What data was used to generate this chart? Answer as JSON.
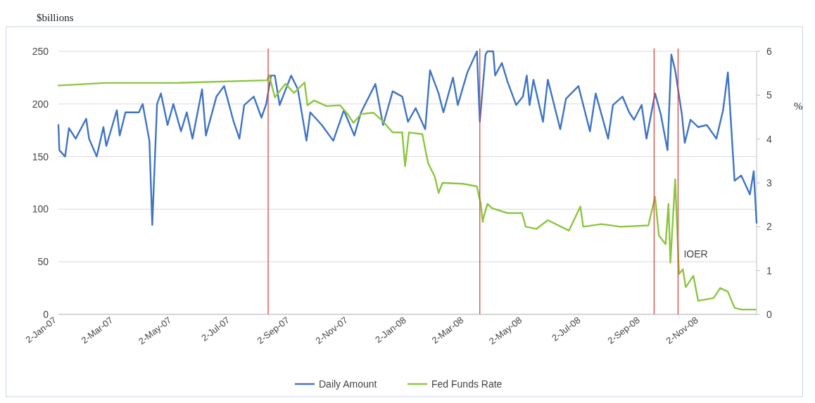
{
  "chart_data": {
    "type": "line",
    "ylabel": "$billions",
    "y2label": "%",
    "xlim": [
      "2007-01-02",
      "2008-12-31"
    ],
    "xticks": [
      {
        "value": "2007-01-02",
        "label": "2-Jan-07"
      },
      {
        "value": "2007-03-02",
        "label": "2-Mar-07"
      },
      {
        "value": "2007-05-02",
        "label": "2-May-07"
      },
      {
        "value": "2007-07-02",
        "label": "2-Jul-07"
      },
      {
        "value": "2007-09-02",
        "label": "2-Sep-07"
      },
      {
        "value": "2007-11-02",
        "label": "2-Nov-07"
      },
      {
        "value": "2008-01-02",
        "label": "2-Jan-08"
      },
      {
        "value": "2008-03-02",
        "label": "2-Mar-08"
      },
      {
        "value": "2008-05-02",
        "label": "2-May-08"
      },
      {
        "value": "2008-07-02",
        "label": "2-Jul-08"
      },
      {
        "value": "2008-09-02",
        "label": "2-Sep-08"
      },
      {
        "value": "2008-11-02",
        "label": "2-Nov-08"
      }
    ],
    "ylim": [
      0,
      250
    ],
    "yticks": [
      0,
      50,
      100,
      150,
      200,
      250
    ],
    "y2lim": [
      0,
      6
    ],
    "y2ticks": [
      0,
      1,
      2,
      3,
      4,
      5,
      6
    ],
    "grid": "y",
    "legend": "bottom",
    "ref_lines": [
      {
        "axis": "x",
        "value": "2007-08-09",
        "color": "#d9453f"
      },
      {
        "axis": "x",
        "value": "2008-03-17",
        "color": "#d9453f"
      },
      {
        "axis": "x",
        "value": "2008-09-15",
        "color": "#d9453f"
      },
      {
        "axis": "x",
        "value": "2008-10-10",
        "color": "#d9453f",
        "label": "IOER"
      }
    ],
    "series": [
      {
        "name": "Daily Amount",
        "color": "#3f74c4",
        "x": [
          "2007-01-02",
          "2007-01-03",
          "2007-01-09",
          "2007-01-13",
          "2007-01-20",
          "2007-01-31",
          "2007-02-03",
          "2007-02-11",
          "2007-02-18",
          "2007-02-21",
          "2007-03-04",
          "2007-03-07",
          "2007-03-13",
          "2007-03-27",
          "2007-03-31",
          "2007-04-07",
          "2007-04-10",
          "2007-04-15",
          "2007-04-19",
          "2007-04-26",
          "2007-05-02",
          "2007-05-10",
          "2007-05-16",
          "2007-05-22",
          "2007-06-01",
          "2007-06-05",
          "2007-06-16",
          "2007-06-24",
          "2007-07-04",
          "2007-07-10",
          "2007-07-15",
          "2007-07-25",
          "2007-08-02",
          "2007-08-07",
          "2007-08-12",
          "2007-08-16",
          "2007-08-21",
          "2007-09-02",
          "2007-09-09",
          "2007-09-18",
          "2007-09-22",
          "2007-10-04",
          "2007-10-16",
          "2007-10-27",
          "2007-11-07",
          "2007-11-14",
          "2007-11-29",
          "2007-12-07",
          "2007-12-17",
          "2007-12-27",
          "2008-01-02",
          "2008-01-10",
          "2008-01-20",
          "2008-01-25",
          "2008-02-03",
          "2008-02-08",
          "2008-02-18",
          "2008-02-23",
          "2008-03-04",
          "2008-03-14",
          "2008-03-17",
          "2008-03-23",
          "2008-03-25",
          "2008-03-31",
          "2008-04-02",
          "2008-04-09",
          "2008-04-15",
          "2008-04-24",
          "2008-05-01",
          "2008-05-05",
          "2008-05-08",
          "2008-05-12",
          "2008-05-22",
          "2008-05-27",
          "2008-06-09",
          "2008-06-15",
          "2008-06-28",
          "2008-07-10",
          "2008-07-16",
          "2008-07-29",
          "2008-08-03",
          "2008-08-13",
          "2008-08-20",
          "2008-08-25",
          "2008-09-02",
          "2008-09-07",
          "2008-09-16",
          "2008-09-22",
          "2008-09-29",
          "2008-10-03",
          "2008-10-07",
          "2008-10-14",
          "2008-10-17",
          "2008-10-23",
          "2008-10-31",
          "2008-11-09",
          "2008-11-19",
          "2008-11-26",
          "2008-12-01",
          "2008-12-08",
          "2008-12-15",
          "2008-12-24",
          "2008-12-28",
          "2008-12-31"
        ],
        "values": [
          180,
          156,
          150,
          177,
          167,
          186,
          167,
          150,
          178,
          160,
          194,
          170,
          192,
          192,
          200,
          165,
          85,
          200,
          210,
          180,
          200,
          174,
          192,
          167,
          214,
          170,
          207,
          217,
          183,
          167,
          199,
          207,
          187,
          200,
          227,
          227,
          199,
          227,
          214,
          165,
          192,
          180,
          165,
          194,
          170,
          192,
          219,
          180,
          212,
          207,
          183,
          196,
          176,
          232,
          210,
          192,
          225,
          199,
          230,
          250,
          183,
          247,
          250,
          250,
          227,
          239,
          221,
          199,
          207,
          227,
          199,
          223,
          183,
          223,
          176,
          205,
          217,
          174,
          210,
          167,
          199,
          207,
          192,
          185,
          199,
          167,
          210,
          190,
          156,
          247,
          232,
          190,
          163,
          185,
          178,
          180,
          167,
          194,
          230,
          127,
          132,
          114,
          136,
          87
        ]
      },
      {
        "name": "Fed Funds Rate",
        "color": "#8cc63f",
        "axis": "y2",
        "x": [
          "2007-01-02",
          "2007-02-20",
          "2007-05-05",
          "2007-08-08",
          "2007-08-10",
          "2007-08-16",
          "2007-08-27",
          "2007-09-05",
          "2007-09-16",
          "2007-09-19",
          "2007-09-26",
          "2007-10-09",
          "2007-10-23",
          "2007-10-31",
          "2007-11-06",
          "2007-11-14",
          "2007-11-27",
          "2007-12-06",
          "2007-12-17",
          "2007-12-27",
          "2007-12-30",
          "2008-01-03",
          "2008-01-17",
          "2008-01-23",
          "2008-01-30",
          "2008-02-03",
          "2008-02-07",
          "2008-02-28",
          "2008-03-14",
          "2008-03-18",
          "2008-03-20",
          "2008-03-21",
          "2008-03-25",
          "2008-03-30",
          "2008-04-15",
          "2008-04-30",
          "2008-05-04",
          "2008-05-15",
          "2008-05-27",
          "2008-06-18",
          "2008-06-30",
          "2008-07-03",
          "2008-07-22",
          "2008-08-11",
          "2008-09-09",
          "2008-09-16",
          "2008-09-20",
          "2008-09-27",
          "2008-09-30",
          "2008-10-02",
          "2008-10-07",
          "2008-10-11",
          "2008-10-15",
          "2008-10-18",
          "2008-10-26",
          "2008-10-31",
          "2008-11-16",
          "2008-11-23",
          "2008-12-01",
          "2008-12-08",
          "2008-12-15",
          "2008-12-30"
        ],
        "values": [
          5.22,
          5.28,
          5.28,
          5.34,
          5.46,
          4.95,
          5.26,
          5.05,
          5.29,
          4.77,
          4.88,
          4.75,
          4.77,
          4.57,
          4.37,
          4.57,
          4.6,
          4.42,
          4.15,
          4.15,
          3.38,
          4.15,
          4.11,
          3.45,
          3.14,
          2.77,
          3.0,
          2.98,
          2.92,
          2.52,
          2.11,
          2.22,
          2.52,
          2.42,
          2.31,
          2.31,
          2.0,
          1.95,
          2.15,
          1.91,
          2.46,
          2.0,
          2.06,
          2.0,
          2.03,
          2.68,
          1.8,
          1.6,
          2.52,
          1.18,
          3.08,
          0.92,
          1.03,
          0.62,
          0.88,
          0.31,
          0.37,
          0.6,
          0.52,
          0.15,
          0.11,
          0.11
        ]
      }
    ]
  }
}
